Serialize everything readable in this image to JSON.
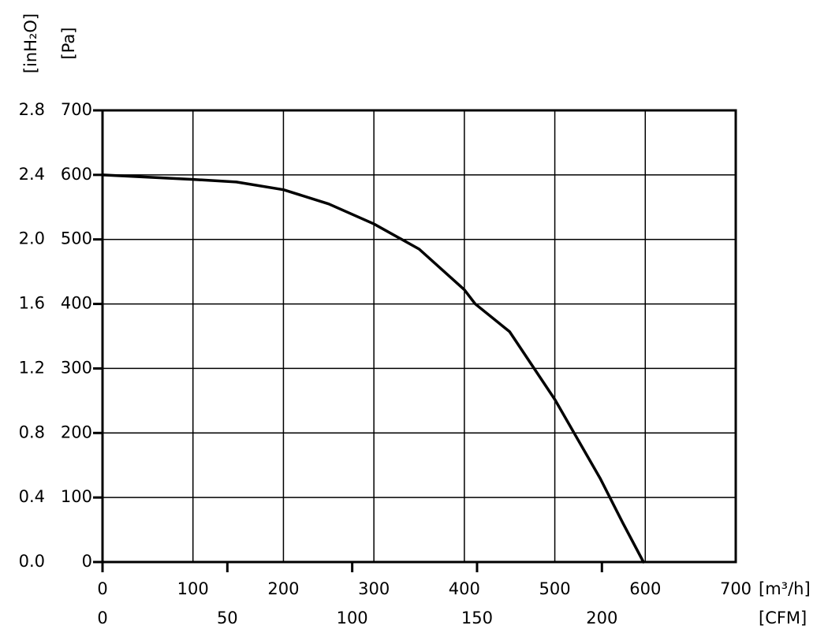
{
  "chart_data": {
    "type": "line",
    "x_label": "[m³/h]",
    "y_label": "[Pa]",
    "y2_label": "[inH₂O]",
    "x2_label": "[CFM]",
    "x": [
      0,
      100,
      148,
      200,
      250,
      300,
      350,
      400,
      412,
      450,
      500,
      550,
      575,
      598
    ],
    "series": [
      {
        "color": "#000000",
        "values": [
          600,
          593,
          589,
          577,
          555,
          524,
          485,
          422,
          400,
          357,
          252,
          130,
          61,
          0
        ]
      }
    ],
    "xlim": [
      0,
      700
    ],
    "xticks": [
      0,
      100,
      200,
      300,
      400,
      500,
      600,
      700
    ],
    "x2lim": [
      0,
      253.6
    ],
    "x2ticks": [
      0,
      50,
      100,
      150,
      200
    ],
    "ylim": [
      0,
      700
    ],
    "yticks": [
      0,
      100,
      200,
      300,
      400,
      500,
      600,
      700
    ],
    "y2lim": [
      0,
      2.8
    ],
    "y2ticks": [
      {
        "value": 0,
        "label": "0.0"
      },
      0.4,
      0.8,
      1.2,
      1.6,
      {
        "value": 2,
        "label": "2.0"
      },
      2.4,
      2.8
    ],
    "grid": true
  }
}
